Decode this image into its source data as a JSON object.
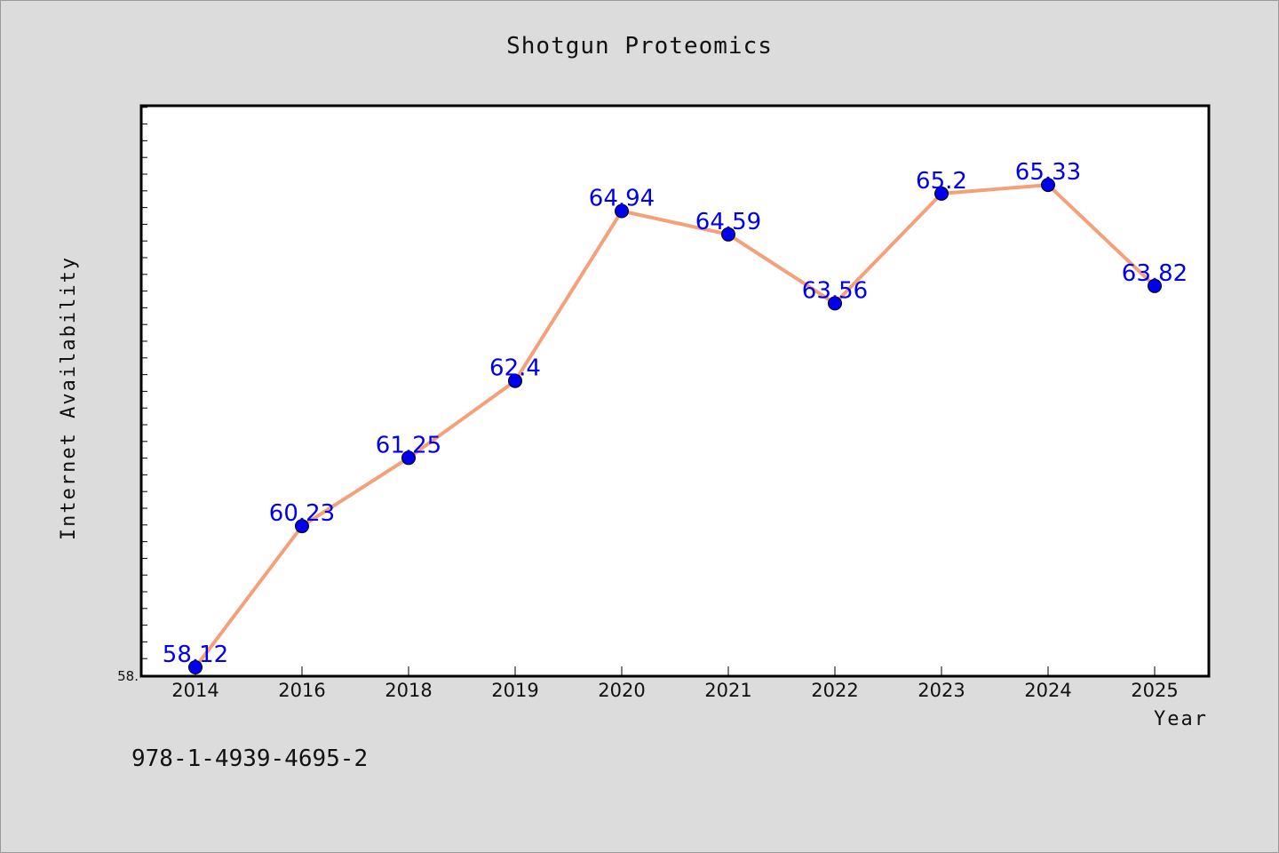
{
  "chart_data": {
    "type": "line",
    "title": "Shotgun Proteomics",
    "xlabel": "Year",
    "ylabel": "Internet Availability",
    "categories": [
      "2014",
      "2016",
      "2018",
      "2019",
      "2020",
      "2021",
      "2022",
      "2023",
      "2024",
      "2025"
    ],
    "series": [
      {
        "values": [
          58.12,
          60.23,
          61.25,
          62.4,
          64.94,
          64.59,
          63.56,
          65.2,
          65.33,
          63.82
        ],
        "labels": [
          "58.12",
          "60.23",
          "61.25",
          "62.4",
          "64.94",
          "64.59",
          "63.56",
          "65.2",
          "65.33",
          "63.82"
        ]
      }
    ],
    "ylim": [
      58.0,
      66.5
    ],
    "ytick_labels": [
      "58."
    ],
    "grid": false,
    "colors": {
      "line": "#f4a07a",
      "marker": "#0000ee",
      "marker_edge": "#000000",
      "data_label": "#0000ee",
      "plot_background": "#ffffff",
      "figure_background": "#dcdcdc"
    }
  },
  "footer": {
    "isbn": "978-1-4939-4695-2"
  }
}
